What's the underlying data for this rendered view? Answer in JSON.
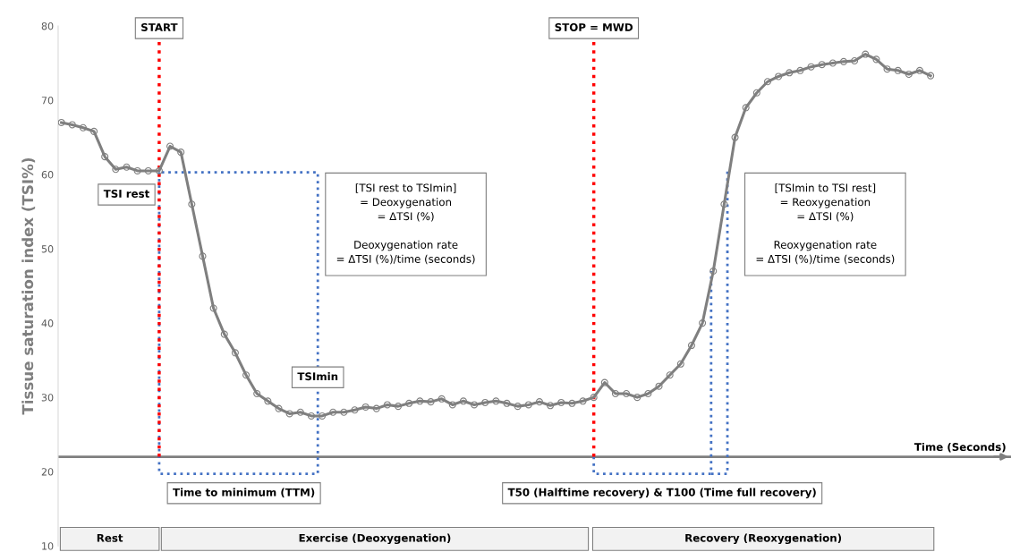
{
  "chart_data": {
    "type": "line",
    "ylabel": "Tissue saturation index (TSI%)",
    "xlabel": "Time (Seconds)",
    "categories": [
      null,
      null,
      null,
      null,
      null,
      null,
      null,
      null,
      null,
      null,
      null,
      null,
      null,
      null,
      null,
      null,
      null,
      null,
      null,
      null,
      null,
      null,
      null,
      null,
      null,
      null,
      null,
      null,
      null,
      null,
      null,
      null,
      null,
      null,
      null,
      null,
      null,
      null,
      null,
      null,
      null,
      null,
      null,
      null,
      null,
      null,
      null,
      null,
      null,
      null,
      null,
      null,
      null,
      null,
      null,
      null,
      null,
      null,
      null,
      null,
      null,
      null,
      null,
      null,
      null,
      null,
      null,
      null,
      null,
      null,
      null,
      null,
      null,
      null,
      null,
      null,
      null,
      null,
      null,
      null,
      null
    ],
    "series": [
      {
        "color": "#7f7f7f",
        "values": [
          67,
          66.7,
          66.3,
          65.8,
          62.4,
          60.7,
          61,
          60.5,
          60.5,
          60.5,
          63.8,
          63,
          56,
          49,
          42,
          38.5,
          36,
          33,
          30.5,
          29.5,
          28.5,
          27.8,
          28,
          27.5,
          27.5,
          28,
          28,
          28.3,
          28.7,
          28.5,
          29,
          28.8,
          29.2,
          29.5,
          29.4,
          29.8,
          29,
          29.5,
          29,
          29.3,
          29.5,
          29.2,
          28.8,
          29,
          29.4,
          28.9,
          29.3,
          29.2,
          29.5,
          30,
          32,
          30.5,
          30.5,
          30,
          30.5,
          31.5,
          33,
          34.5,
          37,
          40,
          47,
          56,
          65,
          69,
          71,
          72.5,
          73.2,
          73.7,
          74,
          74.5,
          74.8,
          75,
          75.2,
          75.3,
          76.2,
          75.5,
          74.2,
          74,
          73.5,
          74,
          73.3
        ]
      }
    ],
    "ylim": [
      10,
      80
    ],
    "yticks": [
      10,
      20,
      30,
      40,
      50,
      60,
      70,
      80
    ],
    "tick_labels": "y",
    "marker": "circle",
    "ref_lines": [
      {
        "axis": "y",
        "value": 22,
        "color": "#7f7f7f",
        "line_style": "solid"
      }
    ],
    "annotations": [
      "TSI rest",
      "TSImin",
      "[TSI rest to TSImin]\n= Deoxygenation\n= ΔTSI (%)\n\nDeoxygenation rate\n= ΔTSI (%)/time (seconds)",
      "[TSImin to TSI rest]\n= Reoxygenation\n= ΔTSI (%)\n\nReoxygenation rate\n= ΔTSI (%)/time (seconds)",
      "Time to minimum (TTM)",
      "T50 (Halftime recovery) & T100 (Time full recovery)",
      "Rest",
      "Exercise (Deoxygenation)",
      "Recovery (Reoxygenation)",
      "START",
      "STOP = MWD"
    ]
  }
}
